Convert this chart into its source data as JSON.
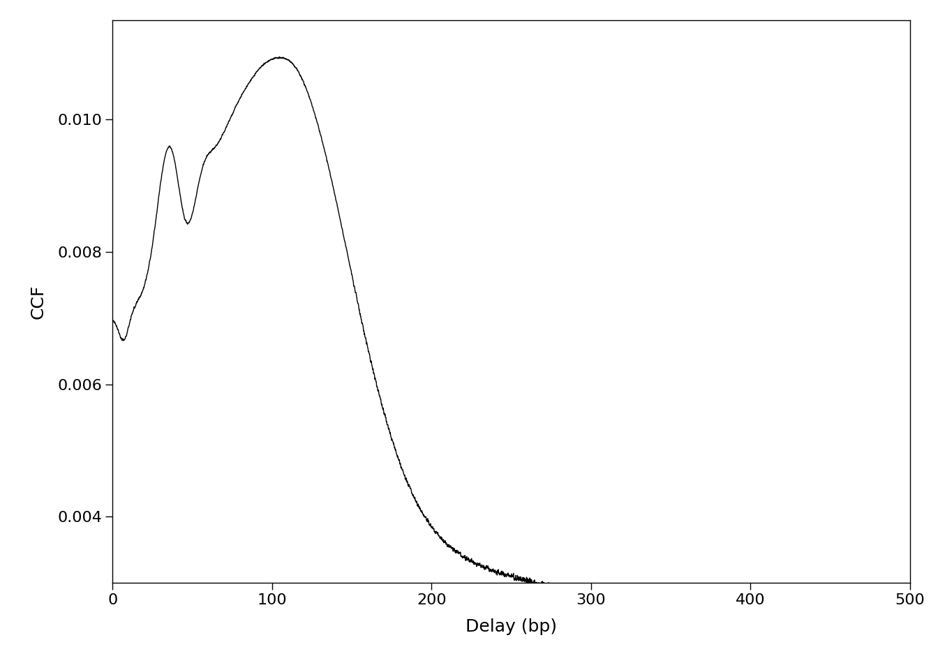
{
  "title": "",
  "xlabel": "Delay (bp)",
  "ylabel": "CCF",
  "xlim": [
    0,
    500
  ],
  "ylim": [
    0.003,
    0.0115
  ],
  "yticks": [
    0.004,
    0.006,
    0.008,
    0.01
  ],
  "xticks": [
    0,
    100,
    200,
    300,
    400,
    500
  ],
  "line_color": "#000000",
  "line_width": 1.0,
  "background_color": "#ffffff",
  "figsize": [
    13.44,
    9.6
  ],
  "dpi": 100,
  "ylabel_fontsize": 18,
  "xlabel_fontsize": 18,
  "tick_labelsize": 16
}
